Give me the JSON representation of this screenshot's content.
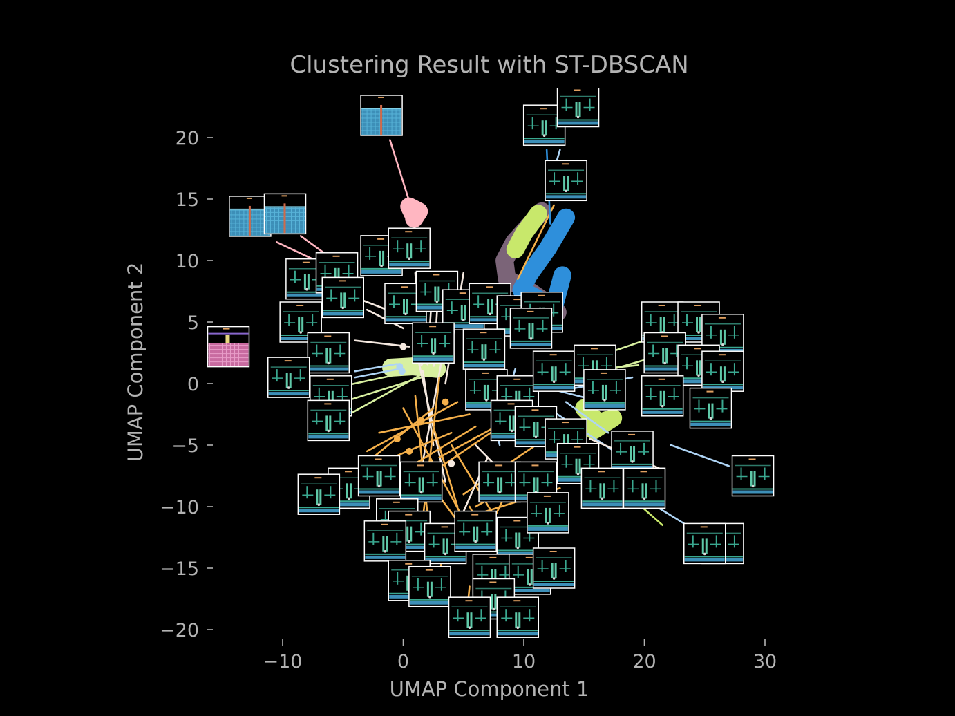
{
  "chart_data": {
    "type": "scatter",
    "title": "Clustering Result with ST-DBSCAN",
    "xlabel": "UMAP Component 1",
    "ylabel": "UMAP Component 2",
    "xlim": [
      -15.3,
      31.5
    ],
    "ylim": [
      -21.5,
      23.5
    ],
    "xticks": [
      -10,
      0,
      10,
      20,
      30
    ],
    "yticks": [
      -20,
      -15,
      -10,
      -5,
      0,
      5,
      10,
      15,
      20
    ],
    "xtick_labels": [
      "−10",
      "0",
      "10",
      "20",
      "30"
    ],
    "ytick_labels": [
      "−20",
      "−15",
      "−10",
      "−5",
      "0",
      "5",
      "10",
      "15",
      "20"
    ],
    "grid": false,
    "legend": "none",
    "background": "#000000",
    "text_color": "#b3b3b3",
    "cluster_colors": [
      "#ffb6c1",
      "#2e8fdb",
      "#7b6478",
      "#c8e86b",
      "#f5b04a",
      "#f5e9e0",
      "#aed4f5",
      "#d8f0a0"
    ],
    "blobs": [
      {
        "color": "#ffb6c1",
        "points": [
          [
            0.8,
            13.8
          ],
          [
            0.5,
            14.4
          ],
          [
            1.3,
            14.0
          ],
          [
            0.9,
            13.4
          ]
        ]
      },
      {
        "color": "#7b6478",
        "points": [
          [
            11.5,
            14.0
          ],
          [
            9.2,
            11.5
          ],
          [
            8.4,
            10.0
          ],
          [
            8.6,
            8.5
          ],
          [
            10.5,
            7.5
          ],
          [
            12.0,
            6.5
          ],
          [
            12.8,
            5.8
          ]
        ]
      },
      {
        "color": "#2e8fdb",
        "points": [
          [
            13.5,
            13.5
          ],
          [
            12.0,
            11.0
          ],
          [
            10.4,
            8.8
          ],
          [
            9.8,
            7.6
          ],
          [
            12.5,
            6.2
          ],
          [
            13.2,
            8.8
          ]
        ]
      },
      {
        "color": "#c8e86b",
        "points": [
          [
            11.2,
            13.8
          ],
          [
            10.0,
            12.2
          ],
          [
            9.3,
            10.9
          ]
        ]
      },
      {
        "color": "#c8e86b",
        "points": [
          [
            15.0,
            -2.0
          ],
          [
            16.2,
            -3.2
          ],
          [
            17.4,
            -2.8
          ],
          [
            15.8,
            -3.8
          ]
        ]
      },
      {
        "color": "#d8f0a0",
        "points": [
          [
            -1.0,
            1.3
          ],
          [
            0.8,
            1.4
          ],
          [
            2.8,
            1.2
          ]
        ]
      }
    ],
    "lines": [
      {
        "x": [
          -1.1,
          0.7
        ],
        "y": [
          19.8,
          14.2
        ],
        "color": "#ffb6c1"
      },
      {
        "x": [
          -8.5,
          -5.0
        ],
        "y": [
          12.0,
          9.5
        ],
        "color": "#ffb6c1"
      },
      {
        "x": [
          -10.5,
          -5.5
        ],
        "y": [
          11.5,
          9.2
        ],
        "color": "#ffb6c1"
      },
      {
        "x": [
          -11.0,
          -10.0
        ],
        "y": [
          1.5,
          1.2
        ],
        "color": "#ffb6c1"
      },
      {
        "x": [
          9.5,
          12.5
        ],
        "y": [
          8.5,
          14.5
        ],
        "color": "#f5b04a"
      },
      {
        "x": [
          11.9,
          12.2
        ],
        "y": [
          19.0,
          13.0
        ],
        "color": "#2e8fdb"
      },
      {
        "x": [
          13.0,
          11.8
        ],
        "y": [
          19.0,
          15.0
        ],
        "color": "#aed4f5"
      },
      {
        "x": [
          -4.0,
          0.0
        ],
        "y": [
          7.0,
          5.5
        ],
        "color": "#f5e9e0"
      },
      {
        "x": [
          -3.0,
          0.0
        ],
        "y": [
          6.0,
          4.5
        ],
        "color": "#f5e9e0"
      },
      {
        "x": [
          -4.0,
          0.5
        ],
        "y": [
          3.5,
          3.0
        ],
        "color": "#f5e9e0"
      },
      {
        "x": [
          -4.0,
          -0.5
        ],
        "y": [
          1.0,
          1.6
        ],
        "color": "#aed4f5"
      },
      {
        "x": [
          -4.0,
          -0.3
        ],
        "y": [
          0.5,
          1.2
        ],
        "color": "#aed4f5"
      },
      {
        "x": [
          -5.0,
          -0.2
        ],
        "y": [
          -0.2,
          0.8
        ],
        "color": "#d8f0a0"
      },
      {
        "x": [
          -5.0,
          1.5
        ],
        "y": [
          -1.5,
          0.5
        ],
        "color": "#d8f0a0"
      },
      {
        "x": [
          -4.5,
          2.0
        ],
        "y": [
          -2.5,
          1.0
        ],
        "color": "#d8f0a0"
      },
      {
        "x": [
          1.0,
          1.5
        ],
        "y": [
          9.0,
          1.5
        ],
        "color": "#f5e9e0"
      },
      {
        "x": [
          2.5,
          2.0
        ],
        "y": [
          9.0,
          1.5
        ],
        "color": "#f5e9e0"
      },
      {
        "x": [
          3.0,
          2.5
        ],
        "y": [
          9.0,
          1.0
        ],
        "color": "#f5e9e0"
      },
      {
        "x": [
          3.8,
          3.0
        ],
        "y": [
          9.0,
          2.0
        ],
        "color": "#f5e9e0"
      },
      {
        "x": [
          5.0,
          3.5
        ],
        "y": [
          9.0,
          0.0
        ],
        "color": "#f5e9e0"
      },
      {
        "x": [
          1.5,
          2.5
        ],
        "y": [
          2.0,
          -5.0
        ],
        "color": "#f5e9e0"
      },
      {
        "x": [
          1.0,
          3.5
        ],
        "y": [
          3.0,
          -8.0
        ],
        "color": "#f5e9e0"
      },
      {
        "x": [
          3.5,
          1.5
        ],
        "y": [
          3.5,
          -7.0
        ],
        "color": "#f5e9e0"
      },
      {
        "x": [
          5.5,
          7.5
        ],
        "y": [
          4.0,
          -3.0
        ],
        "color": "#aed4f5"
      },
      {
        "x": [
          6.0,
          8.0
        ],
        "y": [
          3.0,
          -5.0
        ],
        "color": "#aed4f5"
      },
      {
        "x": [
          9.3,
          7.5
        ],
        "y": [
          1.2,
          -4.5
        ],
        "color": "#aed4f5"
      },
      {
        "x": [
          -5.0,
          2.5
        ],
        "y": [
          -8.0,
          -2.0
        ],
        "color": "#f5b04a"
      },
      {
        "x": [
          -4.5,
          4.0
        ],
        "y": [
          -7.5,
          -4.0
        ],
        "color": "#f5b04a"
      },
      {
        "x": [
          -3.0,
          4.5
        ],
        "y": [
          -5.5,
          -1.5
        ],
        "color": "#f5b04a"
      },
      {
        "x": [
          -2.0,
          5.5
        ],
        "y": [
          -4.0,
          -2.5
        ],
        "color": "#f5b04a"
      },
      {
        "x": [
          -1.5,
          6.0
        ],
        "y": [
          -8.0,
          -3.5
        ],
        "color": "#f5b04a"
      },
      {
        "x": [
          0.0,
          5.0
        ],
        "y": [
          -2.0,
          -11.0
        ],
        "color": "#f5b04a"
      },
      {
        "x": [
          1.0,
          2.0
        ],
        "y": [
          -1.0,
          -10.5
        ],
        "color": "#f5b04a"
      },
      {
        "x": [
          2.5,
          4.5
        ],
        "y": [
          -3.5,
          -10.0
        ],
        "color": "#f5b04a"
      },
      {
        "x": [
          3.0,
          1.5
        ],
        "y": [
          0.5,
          -12.0
        ],
        "color": "#f5b04a"
      },
      {
        "x": [
          1.0,
          5.5
        ],
        "y": [
          -6.5,
          -12.5
        ],
        "color": "#f5b04a"
      },
      {
        "x": [
          4.0,
          8.0
        ],
        "y": [
          -5.0,
          -11.5
        ],
        "color": "#f5b04a"
      },
      {
        "x": [
          5.0,
          11.0
        ],
        "y": [
          -9.0,
          -5.0
        ],
        "color": "#f5b04a"
      },
      {
        "x": [
          6.0,
          11.5
        ],
        "y": [
          -10.0,
          -7.0
        ],
        "color": "#f5b04a"
      },
      {
        "x": [
          6.5,
          13.0
        ],
        "y": [
          -10.5,
          -8.5
        ],
        "color": "#f5b04a"
      },
      {
        "x": [
          3.0,
          10.5
        ],
        "y": [
          -6.0,
          -2.0
        ],
        "color": "#f5b04a"
      },
      {
        "x": [
          2.0,
          8.0
        ],
        "y": [
          -7.5,
          -3.5
        ],
        "color": "#f5b04a"
      },
      {
        "x": [
          6.0,
          10.0
        ],
        "y": [
          -5.0,
          -9.0
        ],
        "color": "#f5e9e0"
      },
      {
        "x": [
          4.5,
          7.0
        ],
        "y": [
          -11.5,
          -6.0
        ],
        "color": "#f5e9e0"
      },
      {
        "x": [
          5.5,
          7.5
        ],
        "y": [
          -10.0,
          -13.5
        ],
        "color": "#f5b04a"
      },
      {
        "x": [
          7.0,
          9.0
        ],
        "y": [
          -12.0,
          -8.0
        ],
        "color": "#f5b04a"
      },
      {
        "x": [
          3.2,
          3.0
        ],
        "y": [
          -14.0,
          -16.5
        ],
        "color": "#f5b04a"
      },
      {
        "x": [
          5.5,
          5.3
        ],
        "y": [
          -16.5,
          -18.5
        ],
        "color": "#f5b04a"
      },
      {
        "x": [
          14.0,
          20.0
        ],
        "y": [
          1.5,
          3.5
        ],
        "color": "#d8f0a0"
      },
      {
        "x": [
          14.5,
          19.5
        ],
        "y": [
          1.0,
          1.5
        ],
        "color": "#d8f0a0"
      },
      {
        "x": [
          15.0,
          21.0
        ],
        "y": [
          0.5,
          2.2
        ],
        "color": "#d8f0a0"
      },
      {
        "x": [
          13.5,
          19.0
        ],
        "y": [
          -0.5,
          0.5
        ],
        "color": "#aed4f5"
      },
      {
        "x": [
          12.5,
          16.5
        ],
        "y": [
          -0.5,
          -1.5
        ],
        "color": "#aed4f5"
      },
      {
        "x": [
          13.5,
          17.0
        ],
        "y": [
          -1.5,
          -4.0
        ],
        "color": "#aed4f5"
      },
      {
        "x": [
          12.0,
          17.5
        ],
        "y": [
          -2.0,
          -5.5
        ],
        "color": "#aed4f5"
      },
      {
        "x": [
          22.2,
          27.0
        ],
        "y": [
          -5.0,
          -6.7
        ],
        "color": "#aed4f5"
      },
      {
        "x": [
          18.0,
          21.5
        ],
        "y": [
          -8.5,
          -11.5
        ],
        "color": "#c8e86b"
      },
      {
        "x": [
          21.0,
          23.5
        ],
        "y": [
          -10.0,
          -11.5
        ],
        "color": "#aed4f5"
      },
      {
        "x": [
          15.5,
          21.5
        ],
        "y": [
          -4.5,
          -7.0
        ],
        "color": "#f5e9e0"
      }
    ],
    "points": [
      {
        "x": -0.3,
        "y": 1.4,
        "color": "#aed4f5"
      },
      {
        "x": -0.1,
        "y": 1.0,
        "color": "#aed4f5"
      },
      {
        "x": 1.8,
        "y": 1.3,
        "color": "#d8f0a0"
      },
      {
        "x": 2.6,
        "y": 1.1,
        "color": "#d8f0a0"
      },
      {
        "x": 0.0,
        "y": 3.0,
        "color": "#f5e9e0"
      },
      {
        "x": 3.9,
        "y": 3.5,
        "color": "#f5e9e0"
      },
      {
        "x": -0.5,
        "y": -4.5,
        "color": "#f5b04a"
      },
      {
        "x": 0.5,
        "y": -5.5,
        "color": "#f5b04a"
      },
      {
        "x": 1.5,
        "y": -3.0,
        "color": "#f5b04a"
      },
      {
        "x": 3.5,
        "y": -1.5,
        "color": "#f5b04a"
      },
      {
        "x": 4.0,
        "y": -6.5,
        "color": "#f5e9e0"
      },
      {
        "x": -1.5,
        "y": -6.5,
        "color": "#f5b04a"
      }
    ],
    "thumbnails": [
      {
        "x": -1.8,
        "y": 21.8,
        "variant": "water"
      },
      {
        "x": 11.7,
        "y": 21.0,
        "variant": "level"
      },
      {
        "x": 14.5,
        "y": 22.5,
        "variant": "level"
      },
      {
        "x": 13.5,
        "y": 16.5,
        "variant": "level"
      },
      {
        "x": -12.7,
        "y": 13.6,
        "variant": "water"
      },
      {
        "x": -9.8,
        "y": 13.8,
        "variant": "water"
      },
      {
        "x": -1.8,
        "y": 10.4,
        "variant": "level"
      },
      {
        "x": 0.5,
        "y": 11.0,
        "variant": "level"
      },
      {
        "x": -8.0,
        "y": 8.5,
        "variant": "level"
      },
      {
        "x": -5.5,
        "y": 9.0,
        "variant": "level"
      },
      {
        "x": -5.0,
        "y": 7.0,
        "variant": "level"
      },
      {
        "x": 0.2,
        "y": 6.5,
        "variant": "level"
      },
      {
        "x": 2.8,
        "y": 7.5,
        "variant": "level"
      },
      {
        "x": 5.0,
        "y": 6.0,
        "variant": "level"
      },
      {
        "x": 7.2,
        "y": 6.5,
        "variant": "level"
      },
      {
        "x": 9.5,
        "y": 5.5,
        "variant": "level"
      },
      {
        "x": 11.5,
        "y": 5.8,
        "variant": "level"
      },
      {
        "x": -8.5,
        "y": 5.0,
        "variant": "level"
      },
      {
        "x": -14.5,
        "y": 3.0,
        "variant": "pink"
      },
      {
        "x": -6.2,
        "y": 2.5,
        "variant": "level"
      },
      {
        "x": -9.5,
        "y": 0.5,
        "variant": "level"
      },
      {
        "x": 2.5,
        "y": 3.3,
        "variant": "level"
      },
      {
        "x": 6.7,
        "y": 2.8,
        "variant": "level"
      },
      {
        "x": 10.6,
        "y": 4.5,
        "variant": "level"
      },
      {
        "x": 6.9,
        "y": -0.5,
        "variant": "level"
      },
      {
        "x": 9.5,
        "y": -1.0,
        "variant": "level"
      },
      {
        "x": 12.5,
        "y": 1.0,
        "variant": "level"
      },
      {
        "x": 15.9,
        "y": 1.5,
        "variant": "level"
      },
      {
        "x": 16.7,
        "y": -0.5,
        "variant": "level"
      },
      {
        "x": 21.5,
        "y": 5.0,
        "variant": "level"
      },
      {
        "x": 24.5,
        "y": 5.0,
        "variant": "level"
      },
      {
        "x": 26.5,
        "y": 4.0,
        "variant": "level"
      },
      {
        "x": 21.7,
        "y": 2.5,
        "variant": "level"
      },
      {
        "x": 24.5,
        "y": 1.5,
        "variant": "level"
      },
      {
        "x": 26.5,
        "y": 1.0,
        "variant": "level"
      },
      {
        "x": 21.5,
        "y": -1.0,
        "variant": "level"
      },
      {
        "x": 25.5,
        "y": -2.0,
        "variant": "level"
      },
      {
        "x": -6.0,
        "y": -1.0,
        "variant": "level"
      },
      {
        "x": -6.2,
        "y": -3.0,
        "variant": "level"
      },
      {
        "x": 9.0,
        "y": -3.0,
        "variant": "level"
      },
      {
        "x": 11.0,
        "y": -3.5,
        "variant": "level"
      },
      {
        "x": 13.5,
        "y": -4.5,
        "variant": "level"
      },
      {
        "x": 19.0,
        "y": -5.5,
        "variant": "level"
      },
      {
        "x": -4.5,
        "y": -8.5,
        "variant": "level"
      },
      {
        "x": -7.0,
        "y": -9.0,
        "variant": "level"
      },
      {
        "x": -2.0,
        "y": -7.5,
        "variant": "level"
      },
      {
        "x": 1.5,
        "y": -8.0,
        "variant": "level"
      },
      {
        "x": 8.0,
        "y": -8.0,
        "variant": "level"
      },
      {
        "x": 11.0,
        "y": -8.0,
        "variant": "level"
      },
      {
        "x": 14.5,
        "y": -6.5,
        "variant": "level"
      },
      {
        "x": 16.5,
        "y": -8.5,
        "variant": "level"
      },
      {
        "x": 20.0,
        "y": -8.5,
        "variant": "level"
      },
      {
        "x": -0.5,
        "y": -11.0,
        "variant": "level"
      },
      {
        "x": 0.5,
        "y": -12.0,
        "variant": "level"
      },
      {
        "x": -1.5,
        "y": -12.8,
        "variant": "level"
      },
      {
        "x": 3.5,
        "y": -13.0,
        "variant": "level"
      },
      {
        "x": 6.0,
        "y": -12.0,
        "variant": "level"
      },
      {
        "x": 9.5,
        "y": -12.5,
        "variant": "level"
      },
      {
        "x": 12.0,
        "y": -10.5,
        "variant": "level"
      },
      {
        "x": 0.5,
        "y": -16.0,
        "variant": "level"
      },
      {
        "x": 2.2,
        "y": -16.5,
        "variant": "level"
      },
      {
        "x": 7.5,
        "y": -15.5,
        "variant": "level"
      },
      {
        "x": 10.5,
        "y": -15.5,
        "variant": "level"
      },
      {
        "x": 12.5,
        "y": -15.0,
        "variant": "level"
      },
      {
        "x": 7.5,
        "y": -17.5,
        "variant": "level"
      },
      {
        "x": 5.5,
        "y": -19.0,
        "variant": "level"
      },
      {
        "x": 9.5,
        "y": -19.0,
        "variant": "level"
      },
      {
        "x": 29.0,
        "y": -7.5,
        "variant": "level"
      },
      {
        "x": 26.5,
        "y": -13.0,
        "variant": "level"
      },
      {
        "x": 25.0,
        "y": -13.0,
        "variant": "level"
      }
    ]
  }
}
